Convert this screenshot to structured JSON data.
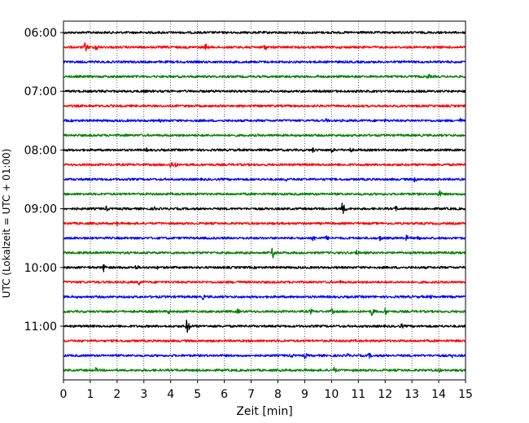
{
  "chart_data": {
    "type": "line",
    "title": "",
    "xlabel": "Zeit  [min]",
    "ylabel": "UTC (Lokalzeit = UTC + 01:00)",
    "xlim": [
      0,
      15
    ],
    "x_ticks": [
      0,
      1,
      2,
      3,
      4,
      5,
      6,
      7,
      8,
      9,
      10,
      11,
      12,
      13,
      14,
      15
    ],
    "y_tick_labels": [
      "06:00",
      "07:00",
      "08:00",
      "09:00",
      "10:00",
      "11:00"
    ],
    "grid": "vertical dotted at each minute",
    "colors": [
      "#000000",
      "#ff0000",
      "#0000ff",
      "#008000"
    ],
    "trace_interval_minutes": 15,
    "series": [
      {
        "start": "06:00",
        "color": "#000000",
        "events": [
          [
            10.0,
            2.5
          ],
          [
            11.5,
            2.0
          ]
        ]
      },
      {
        "start": "06:15",
        "color": "#ff0000",
        "events": [
          [
            0.8,
            7.0
          ],
          [
            1.2,
            6.0
          ],
          [
            5.3,
            5.0
          ],
          [
            6.8,
            5.0
          ],
          [
            7.5,
            4.5
          ]
        ]
      },
      {
        "start": "06:30",
        "color": "#0000ff",
        "events": []
      },
      {
        "start": "06:45",
        "color": "#008000",
        "events": [
          [
            9.5,
            2.5
          ],
          [
            13.6,
            4.0
          ]
        ]
      },
      {
        "start": "07:00",
        "color": "#000000",
        "events": [
          [
            3.0,
            3.0
          ]
        ]
      },
      {
        "start": "07:15",
        "color": "#ff0000",
        "events": []
      },
      {
        "start": "07:30",
        "color": "#0000ff",
        "events": [
          [
            3.6,
            2.5
          ],
          [
            9.8,
            3.0
          ],
          [
            12.0,
            2.5
          ],
          [
            14.8,
            3.5
          ]
        ]
      },
      {
        "start": "07:45",
        "color": "#008000",
        "events": [
          [
            2.3,
            3.0
          ]
        ]
      },
      {
        "start": "08:00",
        "color": "#000000",
        "events": [
          [
            3.1,
            3.0
          ],
          [
            9.3,
            4.0
          ],
          [
            10.0,
            4.0
          ],
          [
            10.7,
            3.5
          ]
        ]
      },
      {
        "start": "08:15",
        "color": "#ff0000",
        "events": [
          [
            4.0,
            6.0
          ],
          [
            4.15,
            4.5
          ]
        ]
      },
      {
        "start": "08:30",
        "color": "#0000ff",
        "events": [
          [
            8.3,
            3.0
          ],
          [
            13.1,
            4.5
          ]
        ]
      },
      {
        "start": "08:45",
        "color": "#008000",
        "events": [
          [
            14.0,
            6.0
          ]
        ]
      },
      {
        "start": "09:00",
        "color": "#000000",
        "events": [
          [
            1.6,
            4.0
          ],
          [
            3.4,
            3.0
          ],
          [
            10.4,
            9.0
          ],
          [
            12.4,
            4.0
          ]
        ]
      },
      {
        "start": "09:15",
        "color": "#ff0000",
        "events": [
          [
            2.0,
            3.5
          ]
        ]
      },
      {
        "start": "09:30",
        "color": "#0000ff",
        "events": [
          [
            9.3,
            5.0
          ],
          [
            9.8,
            4.0
          ],
          [
            11.8,
            4.0
          ],
          [
            12.8,
            4.5
          ],
          [
            13.2,
            4.0
          ]
        ]
      },
      {
        "start": "09:45",
        "color": "#008000",
        "events": [
          [
            1.2,
            3.5
          ],
          [
            7.8,
            8.0
          ],
          [
            10.9,
            5.0
          ]
        ]
      },
      {
        "start": "10:00",
        "color": "#000000",
        "events": [
          [
            1.5,
            5.5
          ],
          [
            2.7,
            4.0
          ],
          [
            3.5,
            2.5
          ]
        ]
      },
      {
        "start": "10:15",
        "color": "#ff0000",
        "events": [
          [
            2.8,
            4.5
          ],
          [
            6.5,
            3.0
          ],
          [
            10.3,
            3.0
          ]
        ]
      },
      {
        "start": "10:30",
        "color": "#0000ff",
        "events": [
          [
            5.2,
            4.0
          ],
          [
            13.7,
            3.0
          ]
        ]
      },
      {
        "start": "10:45",
        "color": "#008000",
        "events": [
          [
            3.9,
            4.0
          ],
          [
            6.5,
            4.0
          ],
          [
            9.2,
            4.5
          ],
          [
            10.0,
            4.5
          ],
          [
            11.5,
            6.0
          ],
          [
            12.0,
            5.0
          ]
        ]
      },
      {
        "start": "11:00",
        "color": "#000000",
        "events": [
          [
            4.6,
            10.0
          ],
          [
            12.6,
            4.0
          ]
        ]
      },
      {
        "start": "11:15",
        "color": "#ff0000",
        "events": []
      },
      {
        "start": "11:30",
        "color": "#0000ff",
        "events": [
          [
            8.5,
            3.5
          ],
          [
            9.0,
            4.0
          ],
          [
            10.6,
            3.5
          ],
          [
            11.4,
            4.0
          ],
          [
            14.5,
            3.0
          ]
        ]
      },
      {
        "start": "11:45",
        "color": "#008000",
        "events": [
          [
            1.2,
            3.5
          ],
          [
            10.1,
            4.5
          ],
          [
            14.0,
            3.5
          ]
        ]
      }
    ]
  }
}
